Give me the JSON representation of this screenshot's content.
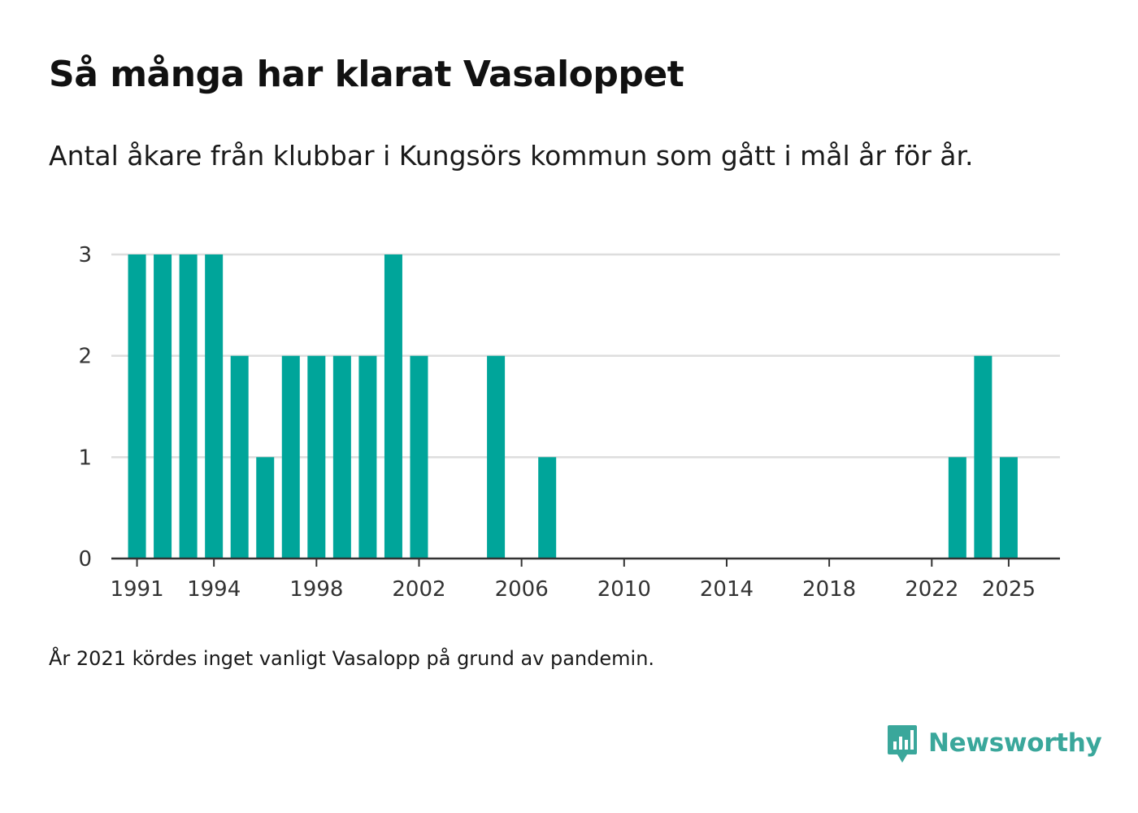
{
  "chart_data": {
    "type": "bar",
    "title": "Så många har klarat Vasaloppet",
    "subtitle": "Antal åkare från klubbar i Kungsörs kommun som gått i mål år för år.",
    "xlabel": "",
    "ylabel": "",
    "x": [
      1991,
      1992,
      1993,
      1994,
      1995,
      1996,
      1997,
      1998,
      1999,
      2000,
      2001,
      2002,
      2003,
      2004,
      2005,
      2006,
      2007,
      2008,
      2009,
      2010,
      2011,
      2012,
      2013,
      2014,
      2015,
      2016,
      2017,
      2018,
      2019,
      2020,
      2022,
      2023,
      2024,
      2025
    ],
    "values": [
      3,
      3,
      3,
      3,
      2,
      1,
      2,
      2,
      2,
      2,
      3,
      2,
      0,
      0,
      2,
      0,
      1,
      0,
      0,
      0,
      0,
      0,
      0,
      0,
      0,
      0,
      0,
      0,
      0,
      0,
      0,
      1,
      2,
      1
    ],
    "x_tick_labels": [
      "1991",
      "1994",
      "1998",
      "2002",
      "2006",
      "2010",
      "2014",
      "2018",
      "2022",
      "2025"
    ],
    "y_tick_labels": [
      "0",
      "1",
      "2",
      "3"
    ],
    "xlim": [
      1990,
      2027
    ],
    "ylim": [
      0,
      3
    ],
    "grid": true,
    "bar_color": "#00a59a",
    "grid_color": "#dddddd",
    "axis_color": "#333333"
  },
  "footnote": "År 2021 kördes inget vanligt Vasalopp på grund av pandemin.",
  "brand": {
    "name": "Newsworthy",
    "color": "#3aa79b",
    "icon": "newsworthy-logo-icon"
  }
}
